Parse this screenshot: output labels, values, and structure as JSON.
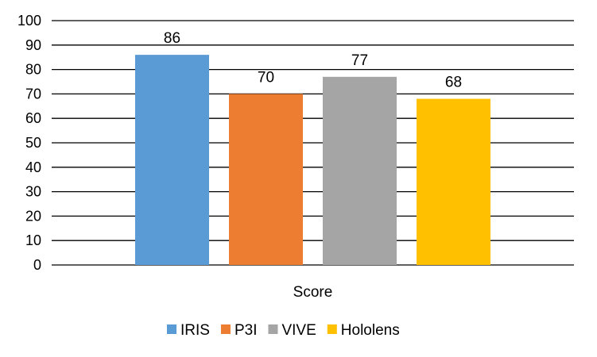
{
  "chart_data": {
    "type": "bar",
    "categories": [
      "Score"
    ],
    "series": [
      {
        "name": "IRIS",
        "values": [
          86
        ],
        "color": "#5B9BD5"
      },
      {
        "name": "P3I",
        "values": [
          70
        ],
        "color": "#ED7D31"
      },
      {
        "name": "VIVE",
        "values": [
          77
        ],
        "color": "#A5A5A5"
      },
      {
        "name": "Hololens",
        "values": [
          68
        ],
        "color": "#FFC000"
      }
    ],
    "ylim": [
      0,
      100
    ],
    "yticks": [
      0,
      10,
      20,
      30,
      40,
      50,
      60,
      70,
      80,
      90,
      100
    ],
    "data_labels": true,
    "grid": true,
    "legend_position": "bottom"
  }
}
